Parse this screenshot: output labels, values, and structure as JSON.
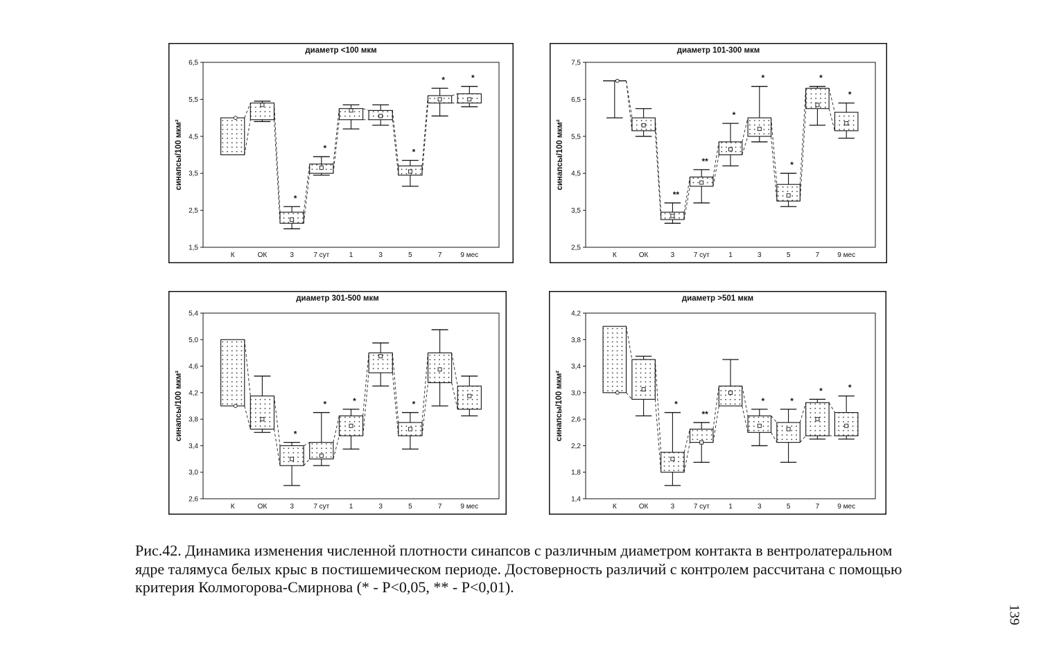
{
  "chart_data": [
    {
      "type": "box",
      "title": "диаметр <100 мкм",
      "ylabel": "синапсы/100 мкм²",
      "ylim": [
        1.5,
        6.5
      ],
      "yticks": [
        "6,5",
        "5,5",
        "4,5",
        "3,5",
        "2,5",
        "1,5"
      ],
      "grid": false,
      "categories": [
        "К",
        "ОК",
        "3",
        "7 сут",
        "1",
        "3",
        "5",
        "7",
        "9 мес"
      ],
      "boxes": [
        {
          "min": 4.0,
          "q1": 4.0,
          "mean": 5.0,
          "q3": 5.0,
          "max": 5.0
        },
        {
          "min": 4.9,
          "q1": 4.95,
          "mean": 5.35,
          "q3": 5.4,
          "max": 5.45
        },
        {
          "min": 2.0,
          "q1": 2.15,
          "mean": 2.25,
          "q3": 2.45,
          "max": 2.6
        },
        {
          "min": 3.45,
          "q1": 3.5,
          "mean": 3.65,
          "q3": 3.75,
          "max": 3.95
        },
        {
          "min": 4.7,
          "q1": 4.95,
          "mean": 5.2,
          "q3": 5.25,
          "max": 5.35
        },
        {
          "min": 4.8,
          "q1": 4.95,
          "mean": 5.05,
          "q3": 5.2,
          "max": 5.35
        },
        {
          "min": 3.15,
          "q1": 3.45,
          "mean": 3.55,
          "q3": 3.7,
          "max": 3.85
        },
        {
          "min": 5.05,
          "q1": 5.4,
          "mean": 5.5,
          "q3": 5.6,
          "max": 5.8
        },
        {
          "min": 5.3,
          "q1": 5.4,
          "mean": 5.5,
          "q3": 5.65,
          "max": 5.85
        }
      ],
      "significance": [
        "",
        "",
        "*",
        "*",
        "",
        "",
        "*",
        "*",
        "*"
      ]
    },
    {
      "type": "box",
      "title": "диаметр 101-300 мкм",
      "ylabel": "синапсы/100 мкм²",
      "ylim": [
        2.5,
        7.5
      ],
      "yticks": [
        "7,5",
        "6,5",
        "5,5",
        "4,5",
        "3,5",
        "2,5"
      ],
      "grid": false,
      "categories": [
        "К",
        "ОК",
        "3",
        "7 сут",
        "1",
        "3",
        "5",
        "7",
        "9 мес"
      ],
      "boxes": [
        {
          "min": 6.0,
          "q1": 7.0,
          "mean": 7.0,
          "q3": 7.0,
          "max": 7.0
        },
        {
          "min": 5.5,
          "q1": 5.65,
          "mean": 5.8,
          "q3": 6.0,
          "max": 6.25
        },
        {
          "min": 3.15,
          "q1": 3.25,
          "mean": 3.35,
          "q3": 3.45,
          "max": 3.7
        },
        {
          "min": 3.7,
          "q1": 4.15,
          "mean": 4.25,
          "q3": 4.4,
          "max": 4.6
        },
        {
          "min": 4.7,
          "q1": 5.0,
          "mean": 5.15,
          "q3": 5.35,
          "max": 5.85
        },
        {
          "min": 5.35,
          "q1": 5.5,
          "mean": 5.7,
          "q3": 6.0,
          "max": 6.85
        },
        {
          "min": 3.6,
          "q1": 3.75,
          "mean": 3.9,
          "q3": 4.2,
          "max": 4.5
        },
        {
          "min": 5.8,
          "q1": 6.25,
          "mean": 6.35,
          "q3": 6.8,
          "max": 6.85
        },
        {
          "min": 5.45,
          "q1": 5.65,
          "mean": 5.85,
          "q3": 6.15,
          "max": 6.4
        }
      ],
      "significance": [
        "",
        "",
        "**",
        "**",
        "*",
        "*",
        "*",
        "*",
        "*"
      ]
    },
    {
      "type": "box",
      "title": "диаметр 301-500 мкм",
      "ylabel": "синапсы/100 мкм²",
      "ylim": [
        2.6,
        5.4
      ],
      "yticks": [
        "5,4",
        "5,0",
        "4,6",
        "4,2",
        "3,8",
        "3,4",
        "3,0",
        "2,6"
      ],
      "grid": false,
      "categories": [
        "К",
        "ОК",
        "3",
        "7 сут",
        "1",
        "3",
        "5",
        "7",
        "9 мес"
      ],
      "boxes": [
        {
          "min": 4.0,
          "q1": 4.0,
          "mean": 4.0,
          "q3": 5.0,
          "max": 5.0
        },
        {
          "min": 3.6,
          "q1": 3.65,
          "mean": 3.8,
          "q3": 4.15,
          "max": 4.45
        },
        {
          "min": 2.8,
          "q1": 3.1,
          "mean": 3.2,
          "q3": 3.4,
          "max": 3.45
        },
        {
          "min": 3.1,
          "q1": 3.2,
          "mean": 3.25,
          "q3": 3.45,
          "max": 3.9
        },
        {
          "min": 3.35,
          "q1": 3.55,
          "mean": 3.7,
          "q3": 3.85,
          "max": 3.95
        },
        {
          "min": 4.3,
          "q1": 4.5,
          "mean": 4.75,
          "q3": 4.8,
          "max": 4.95
        },
        {
          "min": 3.35,
          "q1": 3.55,
          "mean": 3.65,
          "q3": 3.75,
          "max": 3.9
        },
        {
          "min": 4.0,
          "q1": 4.35,
          "mean": 4.55,
          "q3": 4.8,
          "max": 5.15
        },
        {
          "min": 3.85,
          "q1": 3.95,
          "mean": 4.15,
          "q3": 4.3,
          "max": 4.45
        }
      ],
      "significance": [
        "",
        "",
        "*",
        "*",
        "*",
        "",
        "*",
        "",
        ""
      ]
    },
    {
      "type": "box",
      "title": "диаметр >501 мкм",
      "ylabel": "синапсы/100 мкм²",
      "ylim": [
        1.4,
        4.2
      ],
      "yticks": [
        "4,2",
        "3,8",
        "3,4",
        "3,0",
        "2,6",
        "2,2",
        "1,8",
        "1,4"
      ],
      "grid": false,
      "categories": [
        "К",
        "ОК",
        "3",
        "7 сут",
        "1",
        "3",
        "5",
        "7",
        "9 мес"
      ],
      "boxes": [
        {
          "min": 3.0,
          "q1": 3.0,
          "mean": 3.0,
          "q3": 4.0,
          "max": 4.0
        },
        {
          "min": 2.65,
          "q1": 2.9,
          "mean": 3.05,
          "q3": 3.5,
          "max": 3.55
        },
        {
          "min": 1.6,
          "q1": 1.8,
          "mean": 2.0,
          "q3": 2.1,
          "max": 2.7
        },
        {
          "min": 1.95,
          "q1": 2.25,
          "mean": 2.25,
          "q3": 2.45,
          "max": 2.55
        },
        {
          "min": 2.8,
          "q1": 2.8,
          "mean": 3.0,
          "q3": 3.1,
          "max": 3.5
        },
        {
          "min": 2.2,
          "q1": 2.4,
          "mean": 2.5,
          "q3": 2.65,
          "max": 2.75
        },
        {
          "min": 1.95,
          "q1": 2.25,
          "mean": 2.45,
          "q3": 2.55,
          "max": 2.75
        },
        {
          "min": 2.3,
          "q1": 2.35,
          "mean": 2.6,
          "q3": 2.85,
          "max": 2.9
        },
        {
          "min": 2.3,
          "q1": 2.35,
          "mean": 2.5,
          "q3": 2.7,
          "max": 2.95
        }
      ],
      "significance": [
        "",
        "",
        "*",
        "**",
        "",
        "*",
        "*",
        "*",
        "*"
      ]
    }
  ],
  "caption": {
    "lines": [
      "Рис.42. Динамика изменения численной плотности синапсов с различным диаметром контакта в вентролатеральном",
      "ядре талямуса белых крыс в постишемическом периоде. Достоверность различий с контролем рассчитана с помощью",
      "критерия Колмогорова-Смирнова (* - P<0,05, ** - P<0,01)."
    ]
  },
  "page_number": "139"
}
